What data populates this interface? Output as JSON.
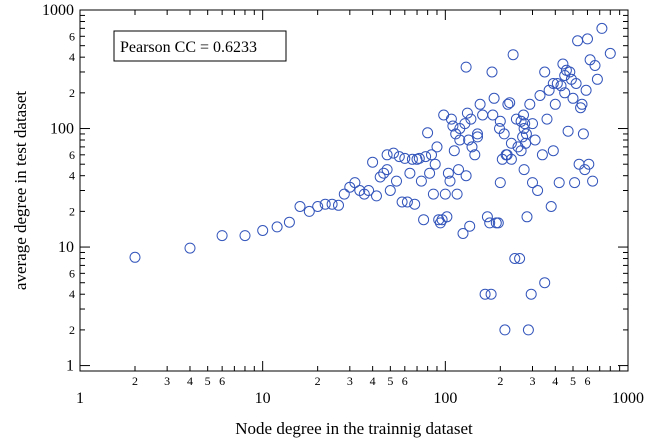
{
  "chart_data": {
    "type": "scatter",
    "title": "",
    "xlabel": "Node degree in the trainnig dataset",
    "ylabel": "average degree in test dataset",
    "x_scale": "log",
    "y_scale": "log",
    "xlim": [
      1,
      1000
    ],
    "ylim": [
      0.9,
      1000
    ],
    "grid": false,
    "x_major_ticks": [
      1,
      10,
      100,
      1000
    ],
    "x_major_tick_labels": [
      "1",
      "10",
      "100",
      "1000"
    ],
    "x_minor_ticks": [
      2,
      3,
      4,
      5,
      6,
      20,
      30,
      40,
      50,
      60,
      200,
      300,
      400,
      500,
      600
    ],
    "x_minor_tick_labels": [
      "2",
      "3",
      "4",
      "5",
      "6",
      "2",
      "3",
      "4",
      "5",
      "6",
      "2",
      "3",
      "4",
      "5",
      "6"
    ],
    "y_major_ticks": [
      1,
      10,
      100,
      1000
    ],
    "y_major_tick_labels": [
      "1",
      "10",
      "100",
      "1000"
    ],
    "y_minor_ticks": [
      2,
      4,
      6,
      20,
      40,
      60,
      200,
      400,
      600
    ],
    "y_minor_tick_labels": [
      "2",
      "4",
      "6",
      "2",
      "4",
      "6",
      "2",
      "4",
      "6"
    ],
    "annotation": "Pearson CC = 0.6233",
    "marker_color": "#3355bb",
    "points": [
      [
        2,
        8.2
      ],
      [
        4,
        9.8
      ],
      [
        6,
        12.5
      ],
      [
        8,
        12.5
      ],
      [
        10,
        13.8
      ],
      [
        12,
        14.8
      ],
      [
        14,
        16.2
      ],
      [
        16,
        22
      ],
      [
        18,
        20
      ],
      [
        20,
        22
      ],
      [
        22,
        23
      ],
      [
        24,
        23
      ],
      [
        26,
        22.5
      ],
      [
        28,
        28
      ],
      [
        30,
        32
      ],
      [
        32,
        35
      ],
      [
        34,
        30
      ],
      [
        36,
        28
      ],
      [
        38,
        30
      ],
      [
        40,
        52
      ],
      [
        42,
        27
      ],
      [
        44,
        39
      ],
      [
        46,
        42
      ],
      [
        48,
        60
      ],
      [
        50,
        30
      ],
      [
        52,
        62
      ],
      [
        54,
        36
      ],
      [
        56,
        58
      ],
      [
        58,
        24
      ],
      [
        60,
        56
      ],
      [
        62,
        24
      ],
      [
        64,
        42
      ],
      [
        66,
        55
      ],
      [
        68,
        23
      ],
      [
        70,
        55
      ],
      [
        72,
        56
      ],
      [
        74,
        36
      ],
      [
        76,
        17
      ],
      [
        78,
        58
      ],
      [
        80,
        92
      ],
      [
        82,
        42
      ],
      [
        84,
        60
      ],
      [
        86,
        28
      ],
      [
        88,
        50
      ],
      [
        90,
        70
      ],
      [
        92,
        17
      ],
      [
        94,
        16
      ],
      [
        96,
        17
      ],
      [
        98,
        130
      ],
      [
        100,
        28
      ],
      [
        102,
        18
      ],
      [
        104,
        42
      ],
      [
        106,
        36
      ],
      [
        108,
        120
      ],
      [
        110,
        105
      ],
      [
        112,
        65
      ],
      [
        114,
        90
      ],
      [
        116,
        28
      ],
      [
        118,
        45
      ],
      [
        120,
        100
      ],
      [
        125,
        13
      ],
      [
        128,
        110
      ],
      [
        130,
        330
      ],
      [
        132,
        135
      ],
      [
        134,
        80
      ],
      [
        136,
        15
      ],
      [
        138,
        120
      ],
      [
        140,
        70
      ],
      [
        145,
        60
      ],
      [
        150,
        90
      ],
      [
        155,
        160
      ],
      [
        160,
        130
      ],
      [
        165,
        4
      ],
      [
        170,
        18
      ],
      [
        175,
        16
      ],
      [
        178,
        4
      ],
      [
        180,
        300
      ],
      [
        182,
        130
      ],
      [
        185,
        180
      ],
      [
        190,
        16
      ],
      [
        195,
        16
      ],
      [
        198,
        100
      ],
      [
        200,
        115
      ],
      [
        205,
        55
      ],
      [
        210,
        90
      ],
      [
        212,
        2
      ],
      [
        215,
        60
      ],
      [
        218,
        60
      ],
      [
        220,
        160
      ],
      [
        225,
        165
      ],
      [
        230,
        75
      ],
      [
        235,
        420
      ],
      [
        240,
        8
      ],
      [
        245,
        120
      ],
      [
        250,
        70
      ],
      [
        255,
        8
      ],
      [
        260,
        115
      ],
      [
        265,
        85
      ],
      [
        268,
        130
      ],
      [
        270,
        100
      ],
      [
        272,
        110
      ],
      [
        275,
        75
      ],
      [
        278,
        90
      ],
      [
        280,
        18
      ],
      [
        285,
        2
      ],
      [
        290,
        160
      ],
      [
        295,
        4
      ],
      [
        300,
        110
      ],
      [
        310,
        80
      ],
      [
        320,
        30
      ],
      [
        330,
        190
      ],
      [
        340,
        60
      ],
      [
        350,
        5
      ],
      [
        360,
        120
      ],
      [
        370,
        210
      ],
      [
        380,
        22
      ],
      [
        390,
        65
      ],
      [
        400,
        160
      ],
      [
        410,
        240
      ],
      [
        420,
        35
      ],
      [
        430,
        230
      ],
      [
        440,
        350
      ],
      [
        450,
        200
      ],
      [
        460,
        310
      ],
      [
        470,
        95
      ],
      [
        480,
        300
      ],
      [
        490,
        260
      ],
      [
        500,
        180
      ],
      [
        510,
        35
      ],
      [
        520,
        240
      ],
      [
        530,
        550
      ],
      [
        540,
        50
      ],
      [
        550,
        150
      ],
      [
        560,
        160
      ],
      [
        570,
        90
      ],
      [
        580,
        45
      ],
      [
        590,
        210
      ],
      [
        600,
        570
      ],
      [
        610,
        50
      ],
      [
        620,
        380
      ],
      [
        640,
        36
      ],
      [
        660,
        340
      ],
      [
        680,
        260
      ],
      [
        720,
        700
      ],
      [
        800,
        430
      ],
      [
        48,
        45
      ],
      [
        130,
        40
      ],
      [
        150,
        85
      ],
      [
        230,
        55
      ],
      [
        270,
        45
      ],
      [
        350,
        300
      ],
      [
        390,
        240
      ],
      [
        450,
        280
      ],
      [
        120,
        80
      ],
      [
        260,
        65
      ],
      [
        300,
        35
      ],
      [
        200,
        35
      ]
    ]
  }
}
